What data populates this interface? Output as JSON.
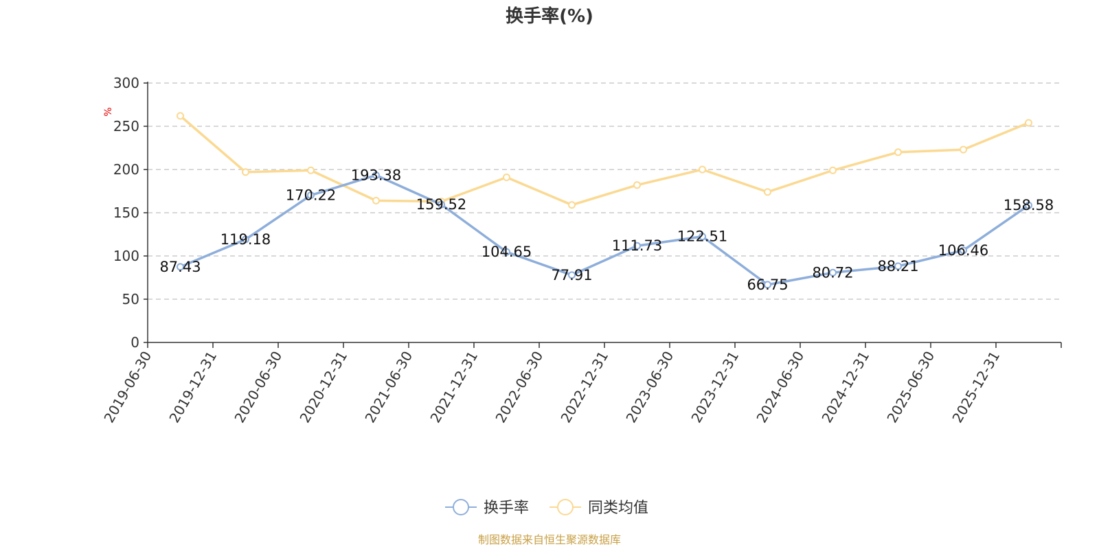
{
  "chart_data": {
    "type": "line",
    "title": "换手率(%)",
    "ylabel": "%",
    "xlabel": "",
    "ylim": [
      0,
      300
    ],
    "yticks": [
      0,
      50,
      100,
      150,
      200,
      250,
      300
    ],
    "grid": true,
    "legend_position": "bottom-center",
    "categories": [
      "2019-06-30",
      "2019-12-31",
      "2020-06-30",
      "2020-12-31",
      "2021-06-30",
      "2021-12-31",
      "2022-06-30",
      "2022-12-31",
      "2023-06-30",
      "2023-12-31",
      "2024-06-30",
      "2024-12-31",
      "2025-06-30",
      "2025-12-31"
    ],
    "series": [
      {
        "name": "换手率",
        "color": "#8eaedb",
        "values": [
          87.43,
          119.18,
          170.22,
          193.38,
          159.52,
          104.65,
          77.91,
          111.73,
          122.51,
          66.75,
          80.72,
          88.21,
          106.46,
          158.58
        ],
        "labels": [
          "87.43",
          "119.18",
          "170.22",
          "193.38",
          "159.52",
          "104.65",
          "77.91",
          "111.73",
          "122.51",
          "66.75",
          "80.72",
          "88.21",
          "106.46",
          "158.58"
        ]
      },
      {
        "name": "同类均值",
        "color": "#fbd992",
        "values": [
          262,
          197,
          199,
          164,
          163,
          191,
          159,
          182,
          200,
          174,
          199,
          220,
          223,
          254
        ]
      }
    ],
    "source": "制图数据来自恒生聚源数据库"
  }
}
